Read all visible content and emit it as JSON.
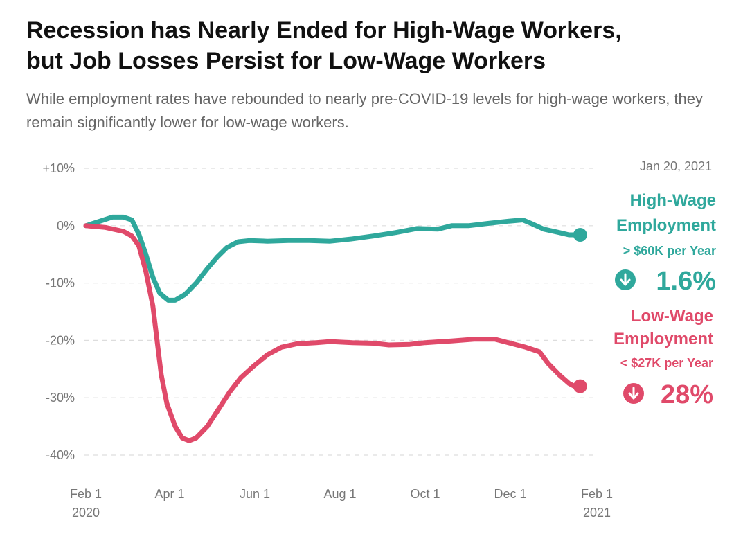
{
  "header": {
    "title_line1": "Recession has Nearly Ended for High-Wage Workers,",
    "title_line2": "but Job Losses Persist for Low-Wage Workers",
    "subtitle": "While employment rates have rebounded to nearly pre-COVID-19 levels for high-wage workers, they remain significantly lower for low-wage workers."
  },
  "colors": {
    "high": "#2fa89c",
    "low": "#e04a6a",
    "grid": "#dddddd",
    "axis_text": "#777777"
  },
  "icons": {
    "down_arrow": "arrow-down-circle-icon"
  },
  "chart_data": {
    "type": "line",
    "date_label": "Jan 20, 2021",
    "ylim": [
      -40,
      10
    ],
    "yticks": [
      {
        "value": 10,
        "label": "+10%"
      },
      {
        "value": 0,
        "label": "0%"
      },
      {
        "value": -10,
        "label": "-10%"
      },
      {
        "value": -20,
        "label": "-20%"
      },
      {
        "value": -30,
        "label": "-30%"
      },
      {
        "value": -40,
        "label": "-40%"
      }
    ],
    "xlim": [
      "2020-02-01",
      "2021-02-01"
    ],
    "xticks": [
      {
        "date": "2020-02-01",
        "line1": "Feb 1",
        "line2": "2020"
      },
      {
        "date": "2020-04-01",
        "line1": "Apr 1",
        "line2": ""
      },
      {
        "date": "2020-06-01",
        "line1": "Jun 1",
        "line2": ""
      },
      {
        "date": "2020-08-01",
        "line1": "Aug 1",
        "line2": ""
      },
      {
        "date": "2020-10-01",
        "line1": "Oct 1",
        "line2": ""
      },
      {
        "date": "2020-12-01",
        "line1": "Dec 1",
        "line2": ""
      },
      {
        "date": "2021-02-01",
        "line1": "Feb 1",
        "line2": "2021"
      }
    ],
    "series": [
      {
        "key": "high",
        "label_line1": "High-Wage",
        "label_line2": "Employment",
        "threshold": "> $60K per Year",
        "end_value_label": "1.6%",
        "points": [
          [
            "2020-02-01",
            0
          ],
          [
            "2020-02-10",
            0.7
          ],
          [
            "2020-02-20",
            1.5
          ],
          [
            "2020-02-28",
            1.5
          ],
          [
            "2020-03-05",
            1.0
          ],
          [
            "2020-03-10",
            -1.5
          ],
          [
            "2020-03-15",
            -5.0
          ],
          [
            "2020-03-20",
            -9.0
          ],
          [
            "2020-03-25",
            -11.8
          ],
          [
            "2020-03-31",
            -13.0
          ],
          [
            "2020-04-05",
            -13.0
          ],
          [
            "2020-04-12",
            -12.0
          ],
          [
            "2020-04-20",
            -10.0
          ],
          [
            "2020-04-28",
            -7.5
          ],
          [
            "2020-05-05",
            -5.5
          ],
          [
            "2020-05-12",
            -3.8
          ],
          [
            "2020-05-20",
            -2.8
          ],
          [
            "2020-05-28",
            -2.6
          ],
          [
            "2020-06-10",
            -2.7
          ],
          [
            "2020-06-25",
            -2.6
          ],
          [
            "2020-07-10",
            -2.6
          ],
          [
            "2020-07-25",
            -2.7
          ],
          [
            "2020-08-10",
            -2.3
          ],
          [
            "2020-08-25",
            -1.8
          ],
          [
            "2020-09-10",
            -1.2
          ],
          [
            "2020-09-25",
            -0.5
          ],
          [
            "2020-10-10",
            -0.6
          ],
          [
            "2020-10-20",
            0.0
          ],
          [
            "2020-11-01",
            0.0
          ],
          [
            "2020-11-15",
            0.4
          ],
          [
            "2020-11-30",
            0.8
          ],
          [
            "2020-12-10",
            1.0
          ],
          [
            "2020-12-15",
            0.5
          ],
          [
            "2020-12-25",
            -0.6
          ],
          [
            "2021-01-05",
            -1.2
          ],
          [
            "2021-01-12",
            -1.6
          ],
          [
            "2021-01-20",
            -1.6
          ]
        ]
      },
      {
        "key": "low",
        "label_line1": "Low-Wage",
        "label_line2": "Employment",
        "threshold": "< $27K per Year",
        "end_value_label": "28%",
        "points": [
          [
            "2020-02-01",
            0
          ],
          [
            "2020-02-15",
            -0.3
          ],
          [
            "2020-02-28",
            -1.0
          ],
          [
            "2020-03-05",
            -1.8
          ],
          [
            "2020-03-10",
            -3.5
          ],
          [
            "2020-03-15",
            -8.0
          ],
          [
            "2020-03-20",
            -14.0
          ],
          [
            "2020-03-23",
            -20.0
          ],
          [
            "2020-03-26",
            -26.0
          ],
          [
            "2020-03-30",
            -31.0
          ],
          [
            "2020-04-05",
            -35.0
          ],
          [
            "2020-04-10",
            -37.0
          ],
          [
            "2020-04-15",
            -37.5
          ],
          [
            "2020-04-20",
            -37.0
          ],
          [
            "2020-04-28",
            -35.0
          ],
          [
            "2020-05-06",
            -32.0
          ],
          [
            "2020-05-14",
            -29.0
          ],
          [
            "2020-05-22",
            -26.5
          ],
          [
            "2020-05-31",
            -24.5
          ],
          [
            "2020-06-10",
            -22.5
          ],
          [
            "2020-06-20",
            -21.2
          ],
          [
            "2020-07-01",
            -20.6
          ],
          [
            "2020-07-15",
            -20.4
          ],
          [
            "2020-07-25",
            -20.2
          ],
          [
            "2020-08-10",
            -20.4
          ],
          [
            "2020-08-25",
            -20.5
          ],
          [
            "2020-09-05",
            -20.8
          ],
          [
            "2020-09-20",
            -20.7
          ],
          [
            "2020-10-01",
            -20.4
          ],
          [
            "2020-10-20",
            -20.1
          ],
          [
            "2020-11-05",
            -19.8
          ],
          [
            "2020-11-20",
            -19.8
          ],
          [
            "2020-12-01",
            -20.5
          ],
          [
            "2020-12-12",
            -21.2
          ],
          [
            "2020-12-22",
            -22.0
          ],
          [
            "2020-12-28",
            -24.0
          ],
          [
            "2021-01-05",
            -26.0
          ],
          [
            "2021-01-12",
            -27.5
          ],
          [
            "2021-01-16",
            -28.0
          ],
          [
            "2021-01-20",
            -28.0
          ]
        ]
      }
    ]
  }
}
